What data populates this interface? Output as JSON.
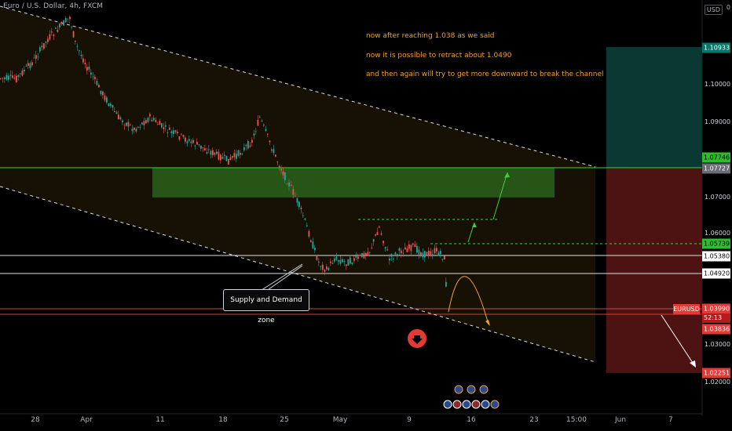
{
  "header": {
    "title": "Euro / U.S. Dollar, 4h, FXCM",
    "currency_button": "USD",
    "corner_value": "0"
  },
  "price_axis": {
    "labels": [
      "1.10000",
      "1.09000",
      "1.07000",
      "1.06000",
      "1.03000",
      "1.02000"
    ]
  },
  "price_tags": {
    "target_top": "1.10933",
    "green_upper": "1.07746",
    "gray_entry": "1.07727",
    "green_lower": "1.05739",
    "white_upper": "1.05380",
    "white_lower": "1.04920",
    "current": "1.03990",
    "countdown": "52:13",
    "support": "1.03836",
    "target_bottom": "1.02251",
    "symbol": "EURUSD"
  },
  "time_axis": {
    "labels": [
      "28",
      "Apr",
      "11",
      "18",
      "25",
      "May",
      "9",
      "16",
      "23",
      "15:00",
      "Jun",
      "7"
    ]
  },
  "annotations": {
    "line1": "now after reaching 1.038 as we said",
    "line2": "now it is possible to retract about 1.0490",
    "line3": "and then again will try to get more downward to break the channel",
    "zone_label": "Supply and Demand zone"
  },
  "colors": {
    "background": "#000000",
    "up_candle": "#26a69a",
    "down_candle": "#ef5350",
    "annotation_text": "#f0a030",
    "supply_demand_zone": "#2e7d32",
    "profit_zone": "#00796b",
    "loss_zone": "#b71c1c"
  },
  "icons": {
    "down_arrow": "arrow-down-circle-icon",
    "event_markers": "flag-icon"
  }
}
